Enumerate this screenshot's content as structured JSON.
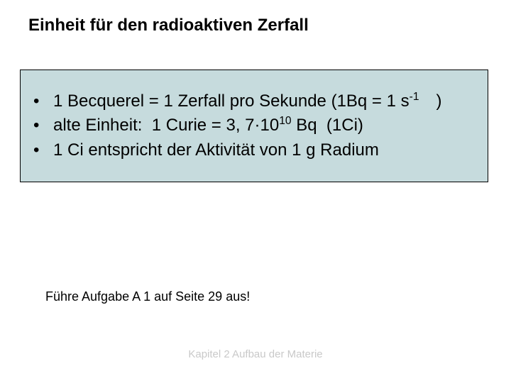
{
  "title": "Einheit für den radioaktiven Zerfall",
  "box": {
    "background_color": "#c6dbdd",
    "border_color": "#000000",
    "bullets": [
      {
        "html": "1 Becquerel = 1 Zerfall pro Sekunde (1Bq = 1 s<sup>-1</sup> )"
      },
      {
        "html": "alte Einheit:  1 Curie = 3, 7·10<sup>10</sup> Bq  (1Ci)"
      },
      {
        "html": "1 Ci entspricht der Aktivität von 1 g Radium"
      }
    ]
  },
  "task": "Führe Aufgabe A 1 auf Seite 29 aus!",
  "footer": "Kapitel 2 Aufbau der Materie",
  "colors": {
    "page_background": "#ffffff",
    "title_text": "#000000",
    "body_text": "#000000",
    "footer_text": "#c9c9c9"
  },
  "typography": {
    "title_fontsize_pt": 18,
    "body_fontsize_pt": 18,
    "task_fontsize_pt": 14,
    "footer_fontsize_pt": 11,
    "font_family": "Arial"
  }
}
